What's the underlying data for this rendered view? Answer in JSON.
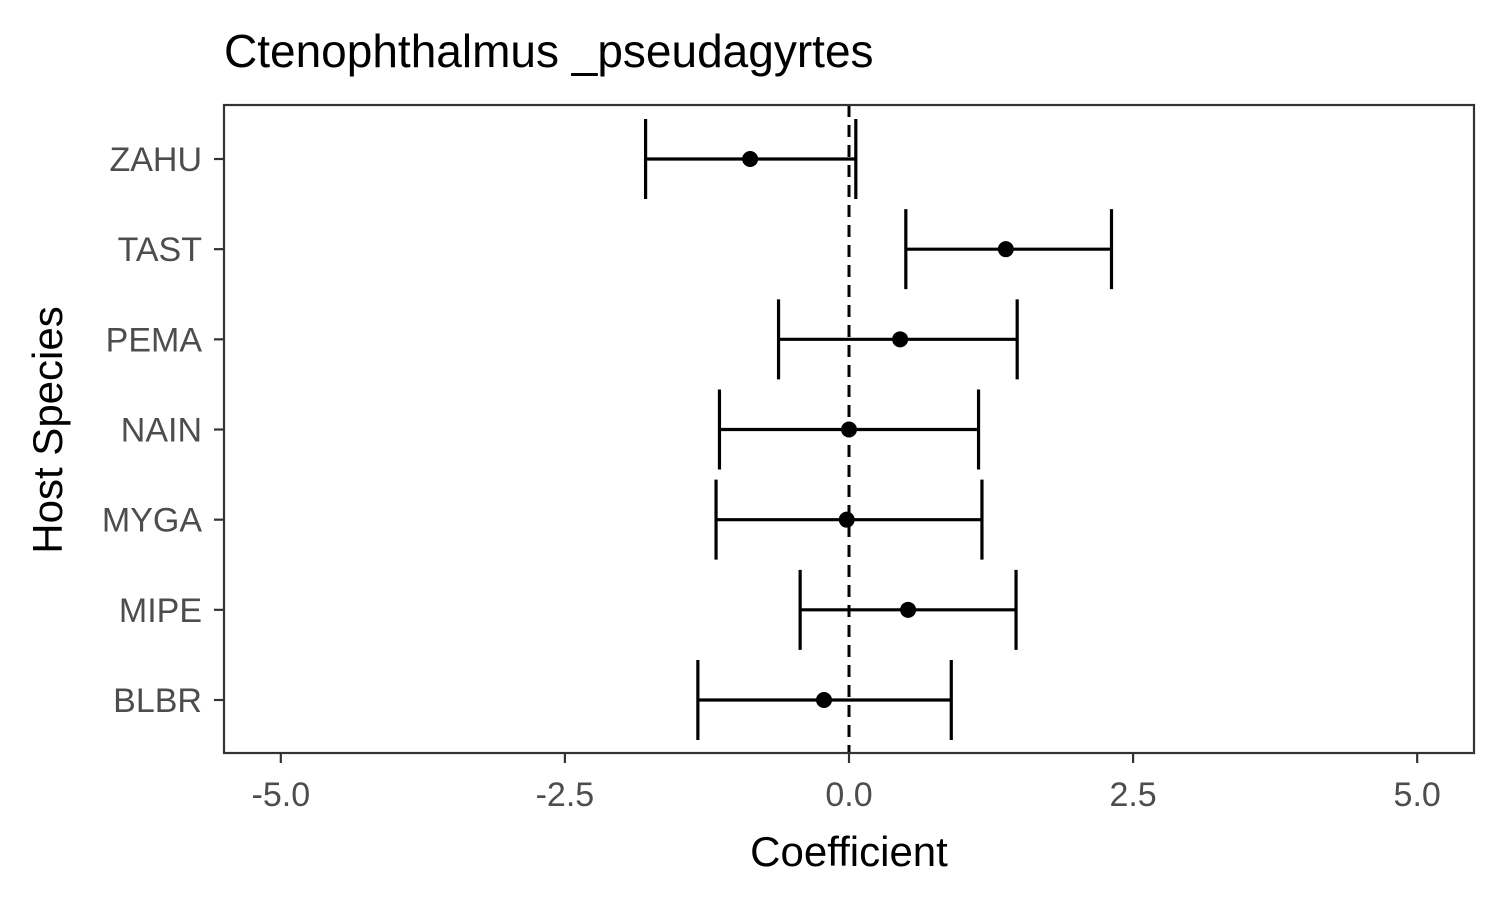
{
  "chart_data": {
    "type": "scatter",
    "subtype": "coefficient-plot-with-error-bars",
    "title": "Ctenophthalmus _pseudagyrtes",
    "xlabel": "Coefficient",
    "ylabel": "Host Species",
    "xlim": [
      -5.5,
      5.5
    ],
    "x_ticks": [
      -5.0,
      -2.5,
      0.0,
      2.5,
      5.0
    ],
    "x_tick_labels": [
      "-5.0",
      "-2.5",
      "0.0",
      "2.5",
      "5.0"
    ],
    "categories": [
      "BLBR",
      "MIPE",
      "MYGA",
      "NAIN",
      "PEMA",
      "TAST",
      "ZAHU"
    ],
    "points": [
      {
        "category": "BLBR",
        "estimate": -0.22,
        "lower": -1.33,
        "upper": 0.9
      },
      {
        "category": "MIPE",
        "estimate": 0.52,
        "lower": -0.43,
        "upper": 1.47
      },
      {
        "category": "MYGA",
        "estimate": -0.02,
        "lower": -1.17,
        "upper": 1.17
      },
      {
        "category": "NAIN",
        "estimate": 0.0,
        "lower": -1.14,
        "upper": 1.14
      },
      {
        "category": "PEMA",
        "estimate": 0.45,
        "lower": -0.62,
        "upper": 1.48
      },
      {
        "category": "TAST",
        "estimate": 1.38,
        "lower": 0.5,
        "upper": 2.31
      },
      {
        "category": "ZAHU",
        "estimate": -0.87,
        "lower": -1.79,
        "upper": 0.06
      }
    ],
    "reference_line": {
      "x": 0,
      "style": "dashed"
    },
    "grid": false,
    "legend": "none",
    "colors": {
      "points": "#000000",
      "error_bars": "#000000",
      "panel_border": "#333333",
      "tick_labels": "#4d4d4d",
      "background": "#ffffff"
    }
  }
}
